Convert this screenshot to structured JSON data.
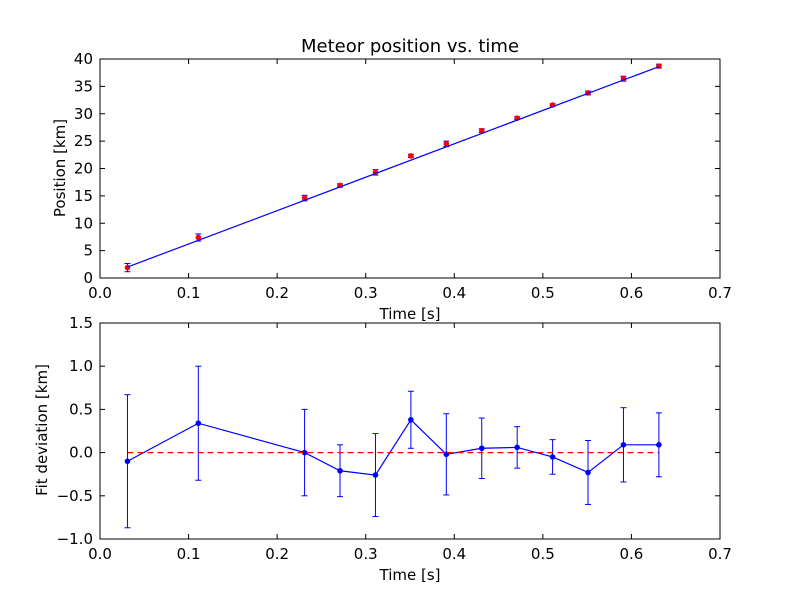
{
  "chart_data": [
    {
      "type": "scatter",
      "title": "Meteor position vs. time",
      "xlabel": "Time [s]",
      "ylabel": "Position [km]",
      "xlim": [
        0.0,
        0.7
      ],
      "ylim": [
        0,
        40
      ],
      "xticks": [
        "0.0",
        "0.1",
        "0.2",
        "0.3",
        "0.4",
        "0.5",
        "0.6",
        "0.7"
      ],
      "yticks": [
        "0",
        "5",
        "10",
        "15",
        "20",
        "25",
        "30",
        "35",
        "40"
      ],
      "grid": false,
      "series": [
        {
          "kind": "errorbar-points",
          "color": "#ff0000",
          "x": [
            0.031,
            0.111,
            0.231,
            0.271,
            0.311,
            0.351,
            0.391,
            0.431,
            0.471,
            0.511,
            0.551,
            0.591,
            0.631
          ],
          "y": [
            1.9,
            7.4,
            14.6,
            16.9,
            19.3,
            22.3,
            24.5,
            26.9,
            29.2,
            31.6,
            33.8,
            36.4,
            38.7
          ],
          "yerr": [
            0.75,
            0.65,
            0.5,
            0.3,
            0.5,
            0.3,
            0.5,
            0.35,
            0.25,
            0.2,
            0.35,
            0.45,
            0.35
          ]
        },
        {
          "kind": "fit-line",
          "color": "#0000ff",
          "x": [
            0.031,
            0.631
          ],
          "y": [
            2.0,
            38.6
          ]
        }
      ]
    },
    {
      "type": "line",
      "title": "",
      "xlabel": "Time [s]",
      "ylabel": "Fit deviation [km]",
      "xlim": [
        0.0,
        0.7
      ],
      "ylim": [
        -1.0,
        1.5
      ],
      "xticks": [
        "0.0",
        "0.1",
        "0.2",
        "0.3",
        "0.4",
        "0.5",
        "0.6",
        "0.7"
      ],
      "yticks": [
        "−1.0",
        "−0.5",
        "0.0",
        "0.5",
        "1.0",
        "1.5"
      ],
      "grid": false,
      "series": [
        {
          "kind": "errorbar-line",
          "color": "#0000ff",
          "x": [
            0.031,
            0.111,
            0.231,
            0.271,
            0.311,
            0.351,
            0.391,
            0.431,
            0.471,
            0.511,
            0.551,
            0.591,
            0.631
          ],
          "y": [
            -0.1,
            0.34,
            0.0,
            -0.21,
            -0.26,
            0.38,
            -0.02,
            0.05,
            0.06,
            -0.05,
            -0.23,
            0.09,
            0.09
          ],
          "yerr": [
            0.77,
            0.66,
            0.5,
            0.3,
            0.48,
            0.33,
            0.47,
            0.35,
            0.24,
            0.2,
            0.37,
            0.43,
            0.37
          ]
        },
        {
          "kind": "reference-line",
          "color": "#ff0000",
          "dashed": true,
          "x": [
            0.031,
            0.631
          ],
          "y": [
            0.0,
            0.0
          ]
        }
      ]
    }
  ]
}
